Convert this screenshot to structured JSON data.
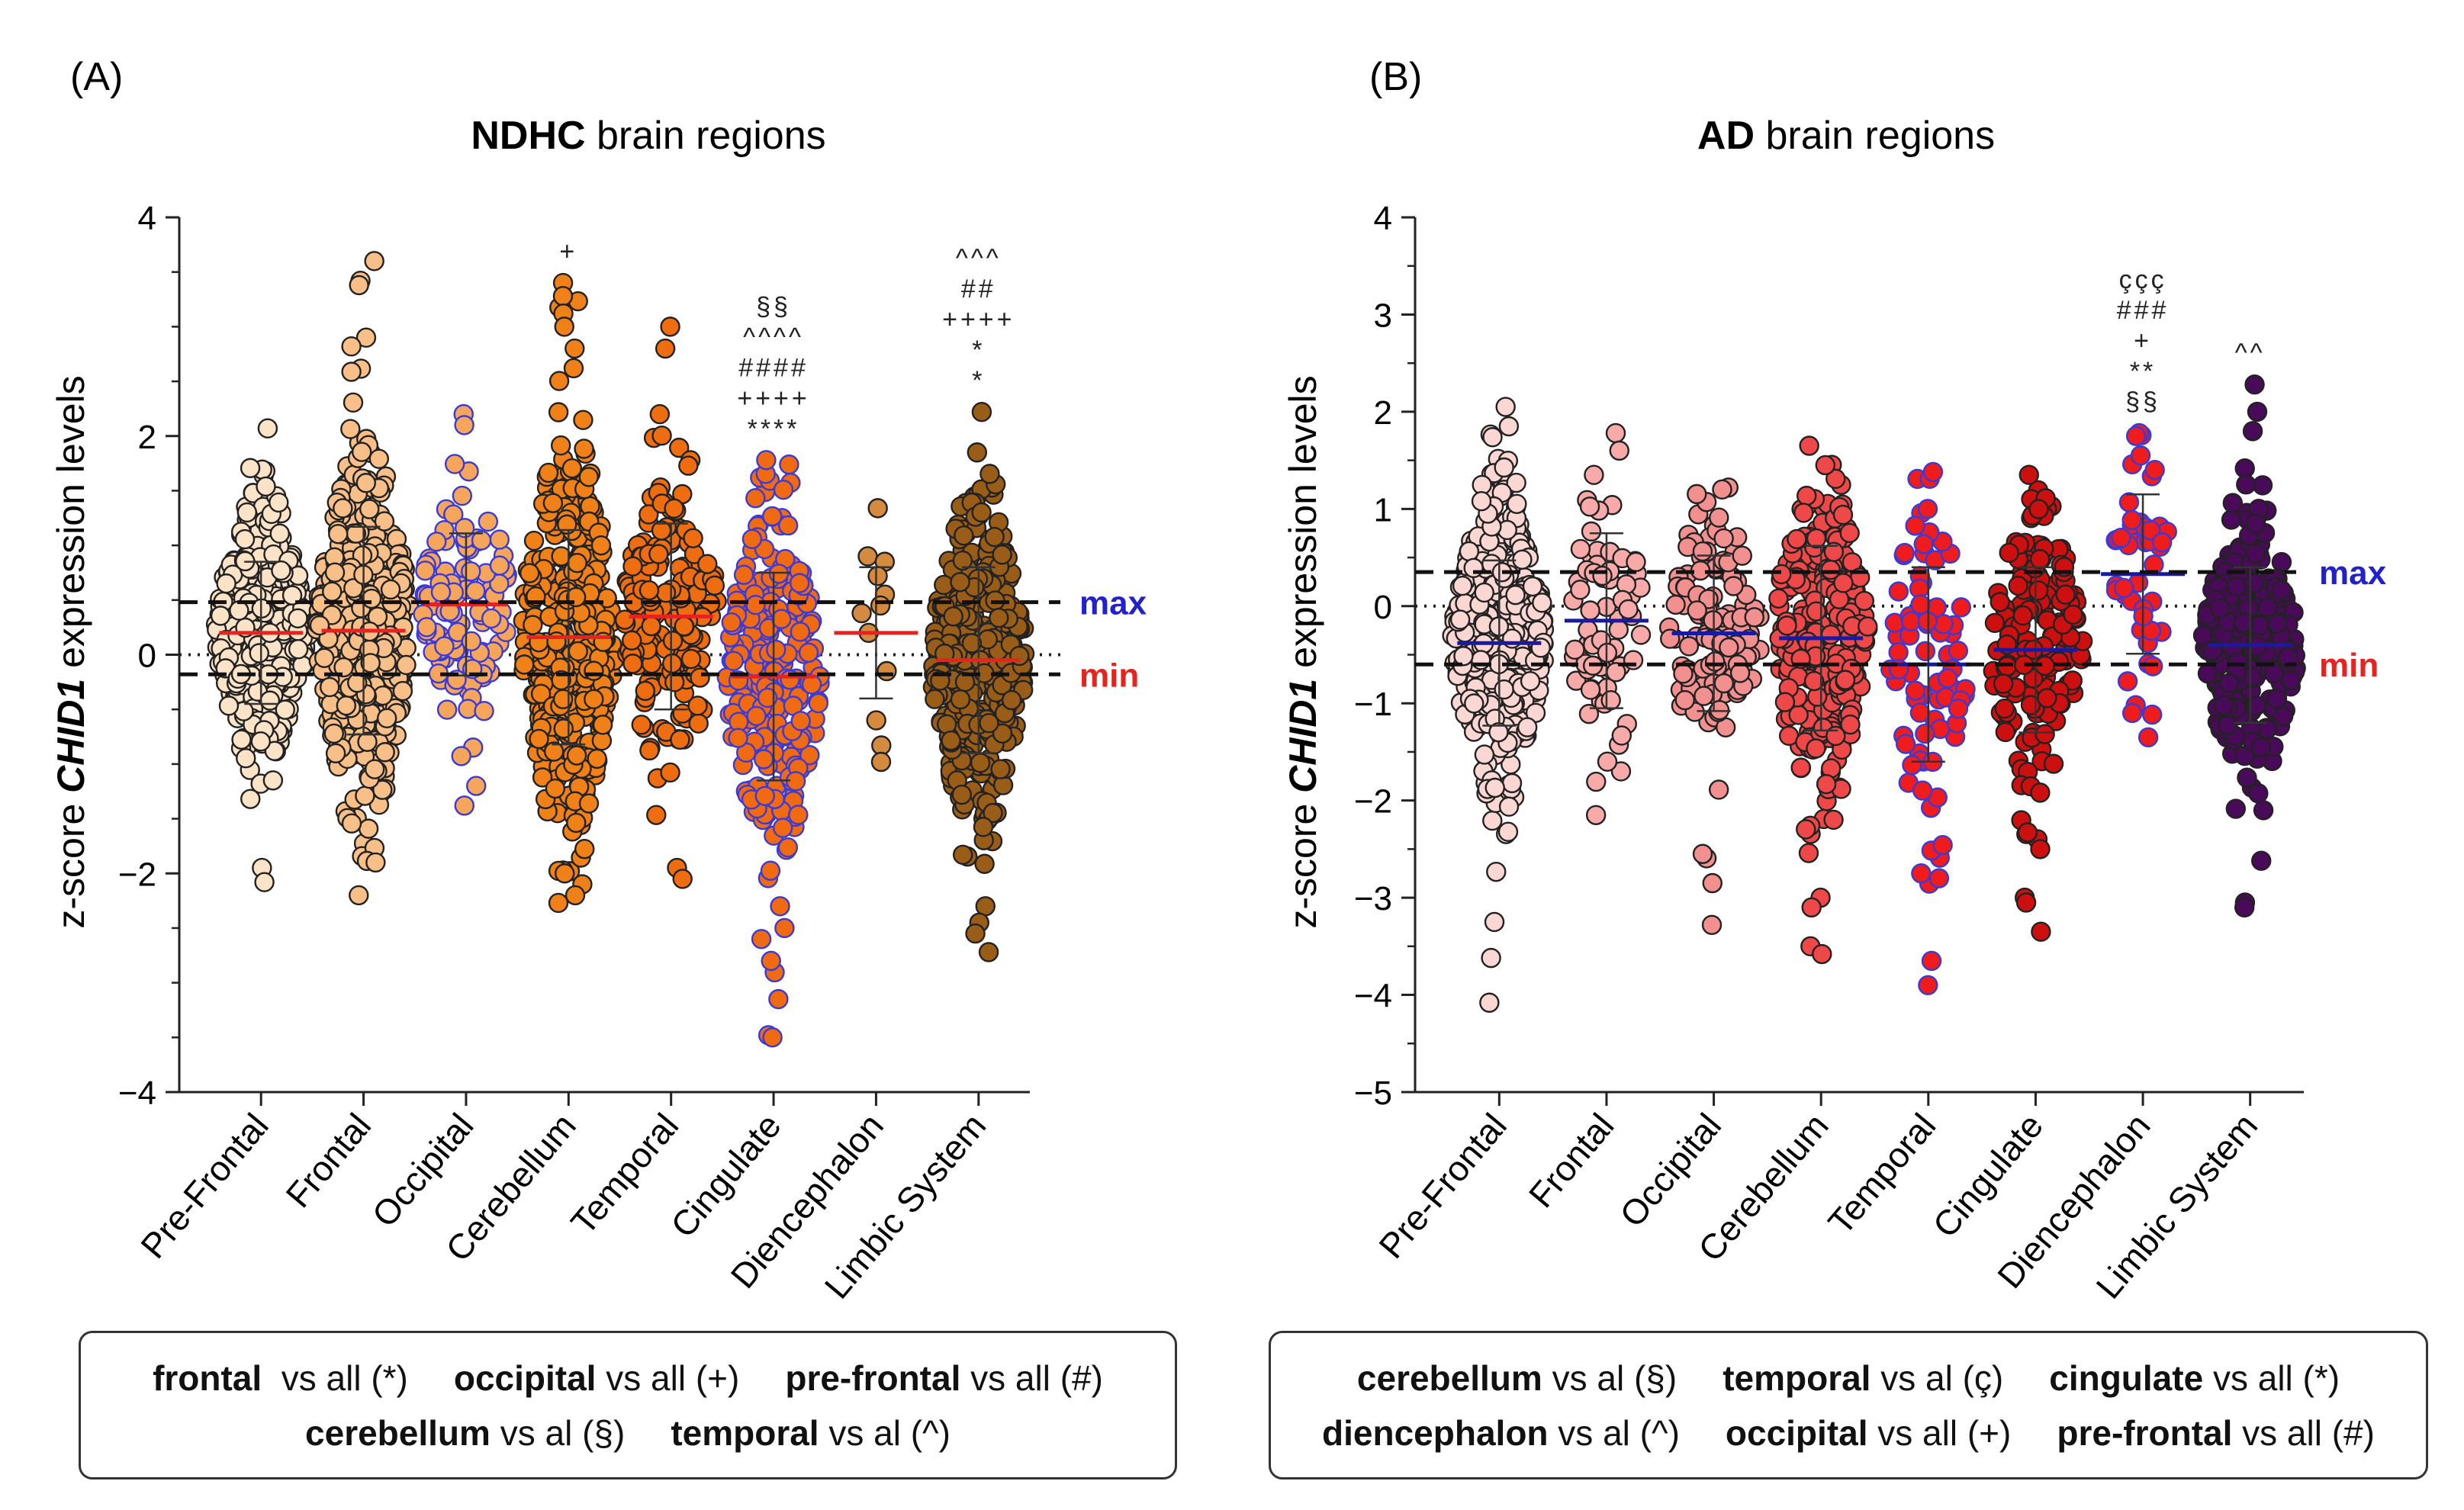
{
  "figure": {
    "panels": [
      {
        "label": "(A)",
        "title_bold": "NDHC",
        "title_rest": " brain regions"
      },
      {
        "label": "(B)",
        "title_bold": "AD",
        "title_rest": " brain regions"
      }
    ],
    "legend_a": [
      [
        {
          "bold": "frontal",
          "rest": "  vs all (*)"
        },
        {
          "bold": "occipital",
          "rest": " vs all (+)"
        },
        {
          "bold": "pre-frontal",
          "rest": " vs all (#)"
        }
      ],
      [
        {
          "bold": "cerebellum",
          "rest": " vs al (§)"
        },
        {
          "bold": "temporal",
          "rest": " vs al (^)"
        }
      ]
    ],
    "legend_b": [
      [
        {
          "bold": "cerebellum",
          "rest": " vs al (§)"
        },
        {
          "bold": "temporal",
          "rest": " vs al (ç)"
        },
        {
          "bold": "cingulate",
          "rest": " vs all (*)"
        }
      ],
      [
        {
          "bold": "diencephalon",
          "rest": " vs al (^)"
        },
        {
          "bold": "occipital",
          "rest": " vs all (+)"
        },
        {
          "bold": "pre-frontal",
          "rest": " vs all (#)"
        }
      ]
    ]
  },
  "chart_data": [
    {
      "type": "scatter",
      "subtype": "dot-plot (beeswarm) with mean and SD",
      "title": "NDHC brain regions",
      "ylabel_prefix": "z-score ",
      "ylabel_gene": "CHID1",
      "ylabel_suffix": " expression levels",
      "ylim": [
        -4,
        4
      ],
      "yticks": [
        -4,
        -2,
        0,
        2,
        4
      ],
      "ytick_labels": [
        "−4",
        "−2",
        "0",
        "2",
        "4"
      ],
      "mean_color": "#e8231f",
      "thresholds": [
        {
          "label": "max",
          "value": 0.48,
          "color": "#2222cc"
        },
        {
          "label": "min",
          "value": -0.18,
          "color": "#e8231f"
        }
      ],
      "zero_line": 0,
      "categories": [
        "Pre-Frontal",
        "Frontal",
        "Occipital",
        "Cerebellum",
        "Temporal",
        "Cingulate",
        "Diencephalon",
        "Limbic System"
      ],
      "series": [
        {
          "name": "Pre-Frontal",
          "mean": 0.2,
          "sd": 0.65,
          "min": -2.08,
          "max": 2.07,
          "n": 420,
          "fill": "#fbe3c8",
          "stroke": "#222222",
          "extra_points": [
            2.07,
            -1.95,
            -2.08
          ]
        },
        {
          "name": "Frontal",
          "mean": 0.22,
          "sd": 0.95,
          "min": -2.2,
          "max": 3.6,
          "n": 430,
          "fill": "#f8bf88",
          "stroke": "#222222",
          "extra_points": [
            3.6,
            3.42,
            3.38,
            2.9,
            2.82,
            -2.2,
            -1.9
          ]
        },
        {
          "name": "Occipital",
          "mean": 0.46,
          "sd": 0.65,
          "min": -1.38,
          "max": 2.2,
          "n": 110,
          "fill": "#f5a65a",
          "stroke": "#3a3ad8",
          "extra_points": [
            2.2,
            2.1,
            -1.38,
            -1.2
          ]
        },
        {
          "name": "Cerebellum",
          "mean": 0.16,
          "sd": 0.98,
          "min": -2.27,
          "max": 3.4,
          "n": 360,
          "fill": "#f08018",
          "stroke": "#222222",
          "extra_points": [
            3.4,
            3.28,
            3.12,
            3.0,
            2.8,
            2.62,
            -2.0,
            -2.1,
            -2.2,
            -2.27
          ]
        },
        {
          "name": "Temporal",
          "mean": 0.35,
          "sd": 0.85,
          "min": -2.05,
          "max": 3.0,
          "n": 170,
          "fill": "#ee6d10",
          "stroke": "#222222",
          "extra_points": [
            3.0,
            2.8,
            2.2,
            -1.95,
            -2.05
          ]
        },
        {
          "name": "Cingulate",
          "mean": -0.2,
          "sd": 0.95,
          "min": -3.5,
          "max": 1.78,
          "n": 230,
          "fill": "#f06a12",
          "stroke": "#3a3ad8",
          "extra_points": [
            1.78,
            -2.3,
            -2.5,
            -2.6,
            -2.8,
            -3.15,
            -3.48,
            -3.5
          ]
        },
        {
          "name": "Diencephalon",
          "mean": 0.2,
          "sd": 0.6,
          "min": -0.98,
          "max": 1.34,
          "n": 12,
          "fill": "#d48b40",
          "stroke": "#222222",
          "extra_points": [
            1.34,
            0.9,
            0.85,
            0.72,
            0.55,
            0.45,
            0.38,
            0.2,
            -0.15,
            -0.6,
            -0.83,
            -0.98
          ]
        },
        {
          "name": "Limbic System",
          "mean": -0.05,
          "sd": 0.85,
          "min": -2.72,
          "max": 2.22,
          "n": 360,
          "fill": "#9a5d18",
          "stroke": "#222222",
          "extra_points": [
            2.22,
            1.85,
            -2.3,
            -2.45,
            -2.55,
            -2.72
          ]
        }
      ],
      "significance": [
        {
          "category": "Cerebellum",
          "marks": [
            "+"
          ]
        },
        {
          "category": "Cingulate",
          "marks": [
            "§§",
            "^^^^",
            "####",
            "++++",
            "****"
          ]
        },
        {
          "category": "Limbic System",
          "marks": [
            "^^^",
            "##",
            "++++",
            "*",
            "*"
          ]
        }
      ]
    },
    {
      "type": "scatter",
      "subtype": "dot-plot (beeswarm) with mean and SD",
      "title": "AD brain regions",
      "ylabel_prefix": "z-score ",
      "ylabel_gene": "CHID1",
      "ylabel_suffix": " expression levels",
      "ylim": [
        -5,
        4
      ],
      "yticks": [
        -5,
        -4,
        -3,
        -2,
        -1,
        0,
        1,
        2,
        3,
        4
      ],
      "ytick_labels": [
        "−5",
        "−4",
        "−3",
        "−2",
        "−1",
        "0",
        "1",
        "2",
        "3",
        "4"
      ],
      "mean_color": "#1a1aa0",
      "thresholds": [
        {
          "label": "max",
          "value": 0.35,
          "color": "#2222cc"
        },
        {
          "label": "min",
          "value": -0.6,
          "color": "#e8231f"
        }
      ],
      "zero_line": 0,
      "categories": [
        "Pre-Frontal",
        "Frontal",
        "Occipital",
        "Cerebellum",
        "Temporal",
        "Cingulate",
        "Diencephalon",
        "Limbic System"
      ],
      "series": [
        {
          "name": "Pre-Frontal",
          "mean": -0.38,
          "sd": 0.85,
          "min": -4.08,
          "max": 2.05,
          "n": 380,
          "fill": "#fad7d2",
          "stroke": "#222222",
          "extra_points": [
            2.05,
            1.85,
            -3.25,
            -3.62,
            -4.08
          ]
        },
        {
          "name": "Frontal",
          "mean": -0.15,
          "sd": 0.9,
          "min": -2.15,
          "max": 1.78,
          "n": 70,
          "fill": "#f7aaa8",
          "stroke": "#222222",
          "extra_points": [
            1.78,
            1.6,
            1.35,
            -1.6,
            -2.15
          ]
        },
        {
          "name": "Occipital",
          "mean": -0.28,
          "sd": 0.8,
          "min": -3.28,
          "max": 1.22,
          "n": 130,
          "fill": "#f29090",
          "stroke": "#222222",
          "extra_points": [
            1.22,
            1.2,
            -2.55,
            -2.85,
            -3.28
          ]
        },
        {
          "name": "Cerebellum",
          "mean": -0.33,
          "sd": 0.95,
          "min": -3.58,
          "max": 1.65,
          "n": 260,
          "fill": "#ee4848",
          "stroke": "#222222",
          "extra_points": [
            1.65,
            1.45,
            -3.0,
            -3.1,
            -3.5,
            -3.58
          ]
        },
        {
          "name": "Temporal",
          "mean": -0.6,
          "sd": 1.0,
          "min": -3.9,
          "max": 1.38,
          "n": 80,
          "fill": "#ee1c1c",
          "stroke": "#3a3ad8",
          "extra_points": [
            1.38,
            1.0,
            -2.75,
            -2.8,
            -3.65,
            -3.9
          ]
        },
        {
          "name": "Cingulate",
          "mean": -0.45,
          "sd": 0.85,
          "min": -3.35,
          "max": 1.35,
          "n": 170,
          "fill": "#cc1010",
          "stroke": "#222222",
          "extra_points": [
            1.35,
            -2.5,
            -3.0,
            -3.05,
            -3.35
          ]
        },
        {
          "name": "Diencephalon",
          "mean": 0.33,
          "sd": 0.82,
          "min": -1.35,
          "max": 1.78,
          "n": 45,
          "fill": "#ee1c1c",
          "stroke": "#3a3ad8",
          "extra_points": [
            1.78,
            1.75,
            1.55,
            -1.1,
            -1.35
          ]
        },
        {
          "name": "Limbic System",
          "mean": -0.4,
          "sd": 0.8,
          "min": -3.1,
          "max": 2.28,
          "n": 280,
          "fill": "#4a0a5a",
          "stroke": "#222222",
          "extra_points": [
            2.28,
            2.0,
            1.8,
            -2.1,
            -2.62,
            -3.05,
            -3.1
          ]
        }
      ],
      "significance": [
        {
          "category": "Diencephalon",
          "marks": [
            "ççç",
            "###",
            "+",
            "**",
            "§§"
          ]
        },
        {
          "category": "Limbic System",
          "marks": [
            "^^"
          ]
        }
      ]
    }
  ]
}
